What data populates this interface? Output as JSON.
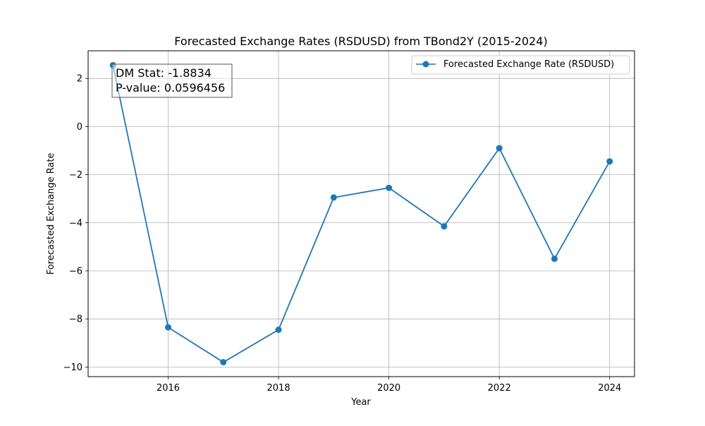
{
  "chart_data": {
    "type": "line",
    "title": "Forecasted Exchange Rates (RSDUSD) from TBond2Y (2015-2024)",
    "xlabel": "Year",
    "ylabel": "Forecasted Exchange Rate",
    "x": [
      2015,
      2016,
      2017,
      2018,
      2019,
      2020,
      2021,
      2022,
      2023,
      2024
    ],
    "series": [
      {
        "name": "Forecasted Exchange Rate (RSDUSD)",
        "color": "#1f77b4",
        "marker": "circle",
        "values": [
          2.55,
          -8.35,
          -9.8,
          -8.45,
          -2.95,
          -2.55,
          -4.15,
          -0.9,
          -5.5,
          -1.45
        ]
      }
    ],
    "xlim": [
      2014.55,
      2024.45
    ],
    "ylim": [
      -10.4,
      3.15
    ],
    "xticks": [
      2016,
      2018,
      2020,
      2022,
      2024
    ],
    "yticks": [
      2,
      0,
      -2,
      -4,
      -6,
      -8,
      -10
    ],
    "ytick_labels": [
      "2",
      "0",
      "−2",
      "−4",
      "−6",
      "−8",
      "−10"
    ],
    "grid": true,
    "legend_position": "upper right",
    "annotation": {
      "line1": "DM Stat: -1.8834",
      "line2": "P-value: 0.0596456",
      "position": "upper left"
    }
  }
}
